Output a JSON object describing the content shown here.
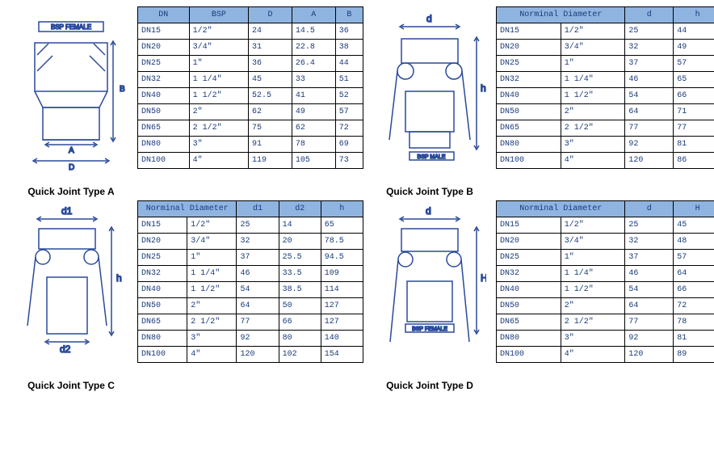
{
  "typeA": {
    "caption": "Quick Joint Type A",
    "diagram_label": "BSP FEMALE",
    "dims": [
      "A",
      "B",
      "D"
    ],
    "columns": [
      "DN",
      "BSP",
      "D",
      "A",
      "B"
    ],
    "rows": [
      [
        "DN15",
        "1/2″",
        "24",
        "14.5",
        "36"
      ],
      [
        "DN20",
        "3/4″",
        "31",
        "22.8",
        "38"
      ],
      [
        "DN25",
        "1″",
        "36",
        "26.4",
        "44"
      ],
      [
        "DN32",
        "1 1/4″",
        "45",
        "33",
        "51"
      ],
      [
        "DN40",
        "1 1/2″",
        "52.5",
        "41",
        "52"
      ],
      [
        "DN50",
        "2″",
        "62",
        "49",
        "57"
      ],
      [
        "DN65",
        "2 1/2″",
        "75",
        "62",
        "72"
      ],
      [
        "DN80",
        "3″",
        "91",
        "78",
        "69"
      ],
      [
        "DN100",
        "4″",
        "119",
        "105",
        "73"
      ]
    ]
  },
  "typeB": {
    "caption": "Quick Joint Type B",
    "diagram_label": "BSP MALE",
    "dims": [
      "d",
      "h"
    ],
    "columns": [
      "Norminal Diameter",
      "d",
      "h"
    ],
    "col_widths": [
      "64px",
      "64px",
      "48px",
      "48px"
    ],
    "rows": [
      [
        "DN15",
        "1/2″",
        "25",
        "44"
      ],
      [
        "DN20",
        "3/4″",
        "32",
        "49"
      ],
      [
        "DN25",
        "1″",
        "37",
        "57"
      ],
      [
        "DN32",
        "1 1/4″",
        "46",
        "65"
      ],
      [
        "DN40",
        "1 1/2″",
        "54",
        "66"
      ],
      [
        "DN50",
        "2″",
        "64",
        "71"
      ],
      [
        "DN65",
        "2 1/2″",
        "77",
        "77"
      ],
      [
        "DN80",
        "3″",
        "92",
        "81"
      ],
      [
        "DN100",
        "4″",
        "120",
        "86"
      ]
    ]
  },
  "typeC": {
    "caption": "Quick Joint Type C",
    "dims": [
      "d1",
      "d2",
      "h"
    ],
    "columns": [
      "Norminal Diameter",
      "d1",
      "d2",
      "h"
    ],
    "col_widths": [
      "54px",
      "54px",
      "46px",
      "46px",
      "46px"
    ],
    "rows": [
      [
        "DN15",
        "1/2″",
        "25",
        "14",
        "65"
      ],
      [
        "DN20",
        "3/4″",
        "32",
        "20",
        "78.5"
      ],
      [
        "DN25",
        "1″",
        "37",
        "25.5",
        "94.5"
      ],
      [
        "DN32",
        "1 1/4″",
        "46",
        "33.5",
        "109"
      ],
      [
        "DN40",
        "1 1/2″",
        "54",
        "38.5",
        "114"
      ],
      [
        "DN50",
        "2″",
        "64",
        "50",
        "127"
      ],
      [
        "DN65",
        "2 1/2″",
        "77",
        "66",
        "127"
      ],
      [
        "DN80",
        "3″",
        "92",
        "80",
        "140"
      ],
      [
        "DN100",
        "4″",
        "120",
        "102",
        "154"
      ]
    ]
  },
  "typeD": {
    "caption": "Quick Joint Type D",
    "diagram_label": "BSP FEMALE",
    "dims": [
      "d",
      "H"
    ],
    "columns": [
      "Norminal Diameter",
      "d",
      "H"
    ],
    "col_widths": [
      "64px",
      "64px",
      "48px",
      "48px"
    ],
    "rows": [
      [
        "DN15",
        "1/2″",
        "25",
        "45"
      ],
      [
        "DN20",
        "3/4″",
        "32",
        "48"
      ],
      [
        "DN25",
        "1″",
        "37",
        "57"
      ],
      [
        "DN32",
        "1 1/4″",
        "46",
        "64"
      ],
      [
        "DN40",
        "1 1/2″",
        "54",
        "66"
      ],
      [
        "DN50",
        "2″",
        "64",
        "72"
      ],
      [
        "DN65",
        "2 1/2″",
        "77",
        "78"
      ],
      [
        "DN80",
        "3″",
        "92",
        "81"
      ],
      [
        "DN100",
        "4″",
        "120",
        "89"
      ]
    ]
  },
  "colors": {
    "header_bg": "#8fb4e0",
    "border": "#000000",
    "text": "#1a3a7a",
    "diagram_stroke": "#2a4a9a"
  }
}
